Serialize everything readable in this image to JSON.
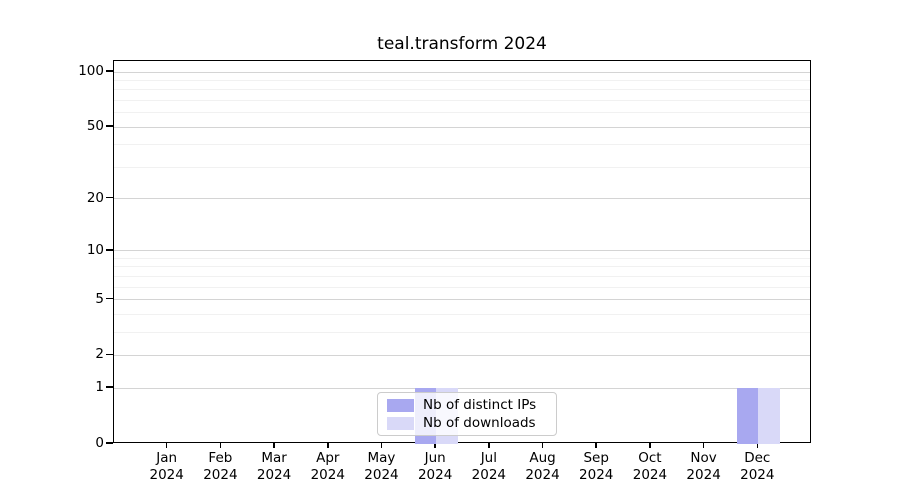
{
  "chart_data": {
    "type": "bar",
    "title": "teal.transform 2024",
    "xlabel": "",
    "ylabel": "",
    "categories": [
      "Jan",
      "Feb",
      "Mar",
      "Apr",
      "May",
      "Jun",
      "Jul",
      "Aug",
      "Sep",
      "Oct",
      "Nov",
      "Dec"
    ],
    "category_year": "2024",
    "series": [
      {
        "name": "Nb of distinct IPs",
        "color": "#a8a8f0",
        "values": [
          0,
          0,
          0,
          0,
          0,
          1,
          0,
          0,
          0,
          0,
          0,
          1
        ]
      },
      {
        "name": "Nb of downloads",
        "color": "#d9d9f8",
        "values": [
          0,
          0,
          0,
          0,
          0,
          1,
          0,
          0,
          0,
          0,
          0,
          1
        ]
      }
    ],
    "yscale": "log10(1+v)",
    "yticks": [
      0,
      1,
      2,
      5,
      10,
      20,
      50,
      100
    ],
    "yticks_minor": [
      3,
      4,
      6,
      7,
      8,
      9,
      30,
      40,
      60,
      70,
      80,
      90
    ],
    "ylim": [
      0,
      115
    ],
    "grid": "horizontal",
    "legend_position": "lower center inside plot",
    "colors": {
      "grid_major": "#d4d4d4",
      "grid_minor": "#f1f1f1",
      "spine": "#000000",
      "background": "#ffffff"
    }
  }
}
